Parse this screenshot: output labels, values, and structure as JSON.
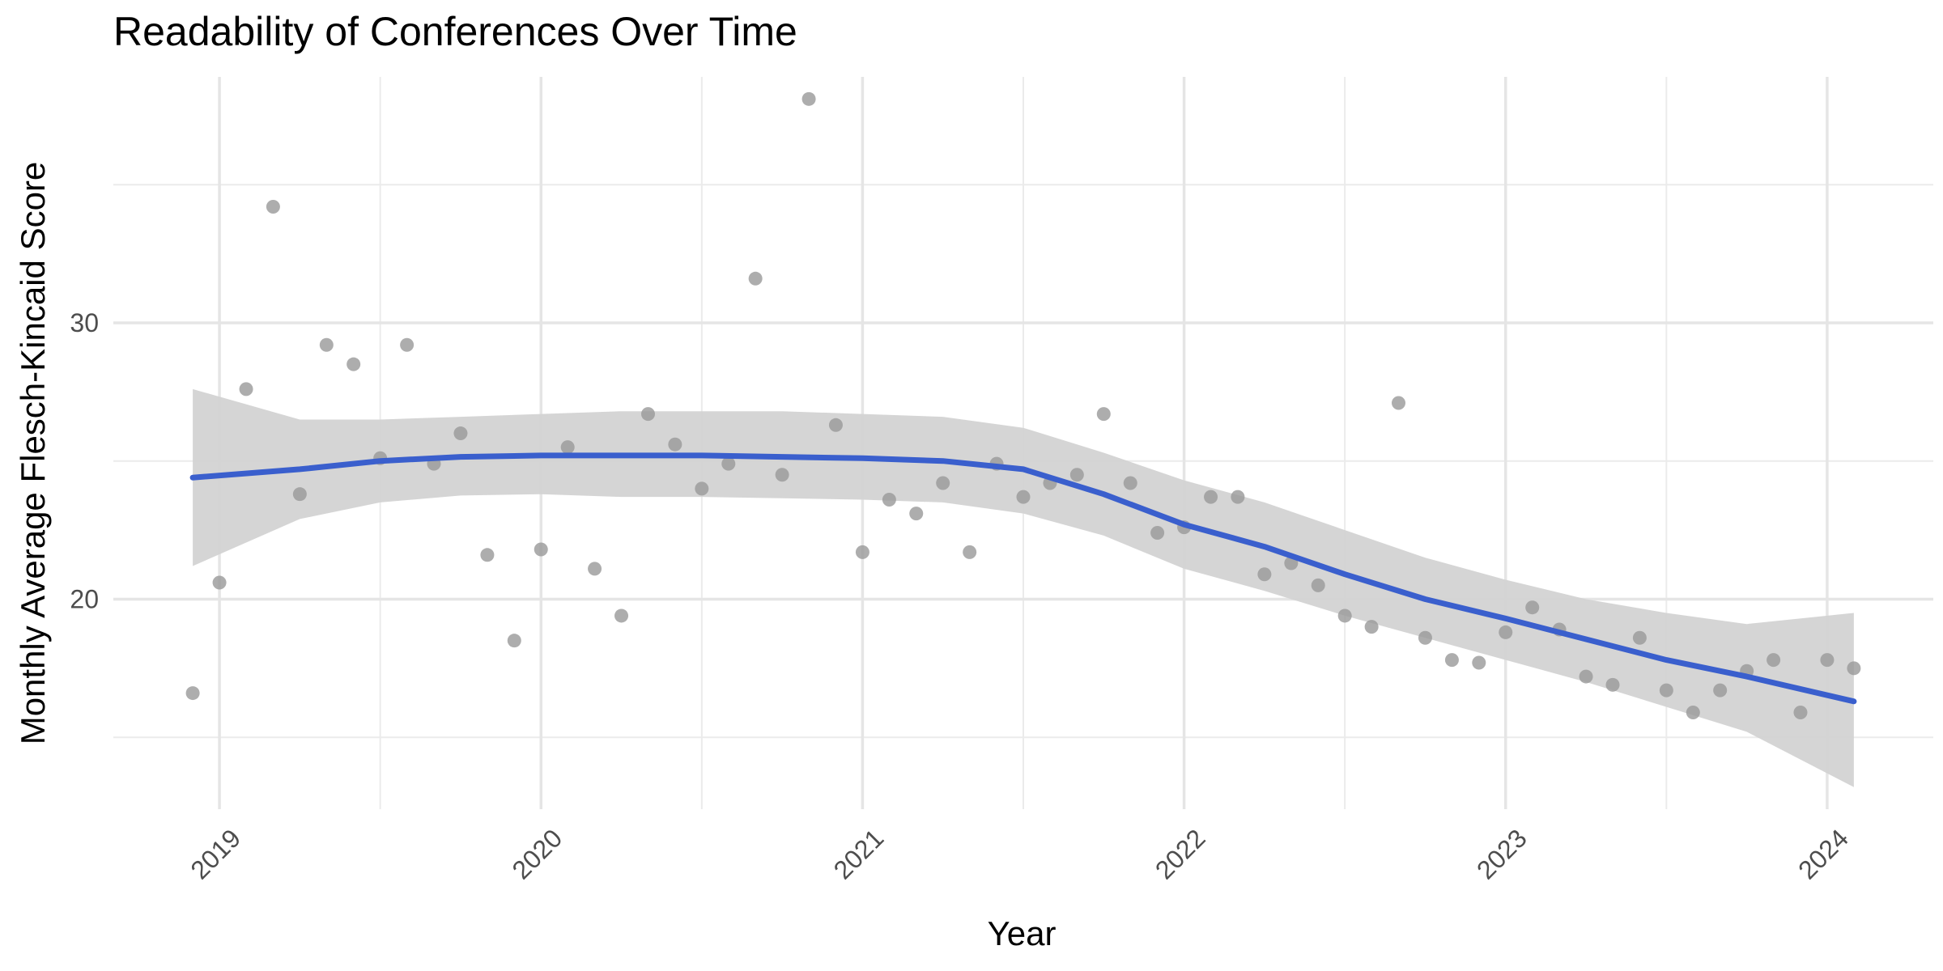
{
  "chart_data": {
    "type": "scatter",
    "title": "Readability of Conferences Over Time",
    "xlabel": "Year",
    "ylabel": "Monthly Average Flesch-Kincaid Score",
    "xlim": [
      2018.67,
      2024.33
    ],
    "ylim": [
      12.4,
      38.9
    ],
    "x_ticks": [
      2019,
      2020,
      2021,
      2022,
      2023,
      2024
    ],
    "y_ticks": [
      20,
      30
    ],
    "grid": true,
    "colors": {
      "points": "#999999",
      "trend": "#3a5fcd",
      "band": "#d3d3d3"
    },
    "points": {
      "x": [
        2018.917,
        2019.0,
        2019.083,
        2019.167,
        2019.25,
        2019.333,
        2019.417,
        2019.5,
        2019.583,
        2019.667,
        2019.75,
        2019.833,
        2019.917,
        2020.0,
        2020.083,
        2020.167,
        2020.25,
        2020.333,
        2020.417,
        2020.5,
        2020.583,
        2020.667,
        2020.75,
        2020.833,
        2020.917,
        2021.0,
        2021.083,
        2021.167,
        2021.25,
        2021.333,
        2021.417,
        2021.5,
        2021.583,
        2021.667,
        2021.75,
        2021.833,
        2021.917,
        2022.0,
        2022.083,
        2022.167,
        2022.25,
        2022.333,
        2022.417,
        2022.5,
        2022.583,
        2022.667,
        2022.75,
        2022.833,
        2022.917,
        2023.0,
        2023.083,
        2023.167,
        2023.25,
        2023.333,
        2023.417,
        2023.5,
        2023.583,
        2023.667,
        2023.75,
        2023.833,
        2023.917,
        2024.0,
        2024.083
      ],
      "y": [
        16.6,
        20.6,
        27.6,
        34.2,
        23.8,
        29.2,
        28.5,
        25.1,
        29.2,
        24.9,
        26.0,
        21.6,
        18.5,
        21.8,
        25.5,
        21.1,
        19.4,
        26.7,
        25.6,
        24.0,
        24.9,
        31.6,
        24.5,
        38.1,
        26.3,
        21.7,
        23.6,
        23.1,
        24.2,
        21.7,
        24.9,
        23.7,
        24.2,
        24.5,
        26.7,
        24.2,
        22.4,
        22.6,
        23.7,
        23.7,
        20.9,
        21.3,
        20.5,
        19.4,
        19.0,
        27.1,
        18.6,
        17.8,
        17.7,
        18.8,
        19.7,
        18.9,
        17.2,
        16.9,
        18.6,
        16.7,
        15.9,
        16.7,
        17.4,
        17.8,
        15.9,
        17.8,
        17.5
      ]
    },
    "trend": {
      "x": [
        2018.917,
        2019.25,
        2019.5,
        2019.75,
        2020.0,
        2020.25,
        2020.5,
        2020.75,
        2021.0,
        2021.25,
        2021.5,
        2021.75,
        2022.0,
        2022.25,
        2022.5,
        2022.75,
        2023.0,
        2023.25,
        2023.5,
        2023.75,
        2024.083
      ],
      "y": [
        24.4,
        24.7,
        25.0,
        25.15,
        25.2,
        25.2,
        25.2,
        25.15,
        25.1,
        25.0,
        24.7,
        23.8,
        22.7,
        21.9,
        20.9,
        20.0,
        19.3,
        18.55,
        17.8,
        17.2,
        16.3
      ],
      "lower": [
        21.2,
        22.9,
        23.5,
        23.75,
        23.8,
        23.7,
        23.7,
        23.65,
        23.6,
        23.5,
        23.1,
        22.3,
        21.1,
        20.3,
        19.4,
        18.6,
        17.8,
        17.0,
        16.1,
        15.2,
        13.2
      ],
      "upper": [
        27.6,
        26.5,
        26.5,
        26.6,
        26.7,
        26.8,
        26.8,
        26.8,
        26.7,
        26.6,
        26.2,
        25.3,
        24.3,
        23.5,
        22.5,
        21.5,
        20.7,
        20.0,
        19.5,
        19.1,
        19.5
      ]
    }
  }
}
